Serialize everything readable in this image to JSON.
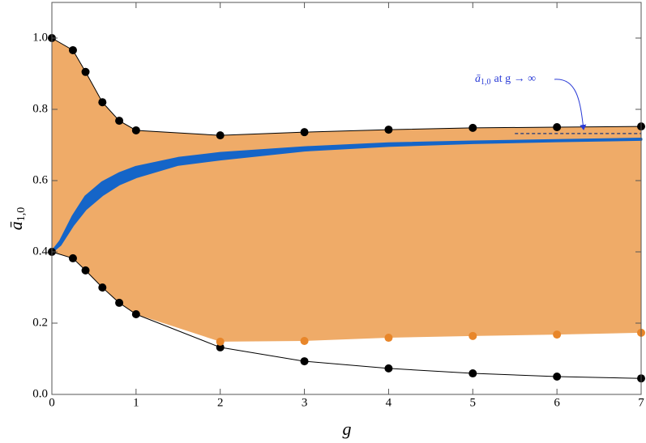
{
  "chart_data": {
    "type": "band-scatter",
    "x_label": "g",
    "y_label": {
      "symbol": "ā",
      "sub": "1,0"
    },
    "annotation": {
      "symbol": "ā",
      "sub": "1,0",
      "rest": "at g → ∞"
    },
    "xlim": [
      0,
      7
    ],
    "ylim": [
      0,
      1.1
    ],
    "xticks": [
      0,
      1,
      2,
      3,
      4,
      5,
      6,
      7
    ],
    "yticks": [
      {
        "value": 0,
        "label": "0.0"
      },
      0.2,
      0.4,
      0.6,
      0.8,
      {
        "value": 1,
        "label": "1.0"
      }
    ],
    "region": {
      "color": "#efab68",
      "x": [
        0,
        0.25,
        0.4,
        0.6,
        0.8,
        1,
        2,
        3,
        4,
        5,
        6,
        7
      ],
      "upper": [
        1.0,
        0.966,
        0.905,
        0.82,
        0.768,
        0.741,
        0.727,
        0.736,
        0.743,
        0.748,
        0.75,
        0.752
      ],
      "lower": [
        0.4,
        0.382,
        0.348,
        0.3,
        0.257,
        0.225,
        0.148,
        0.15,
        0.159,
        0.164,
        0.168,
        0.173
      ]
    },
    "curve": {
      "color": "#1565c8",
      "x": [
        0,
        0.1,
        0.25,
        0.4,
        0.6,
        0.8,
        1,
        1.5,
        2,
        3,
        4,
        5,
        6,
        7
      ],
      "upper": [
        0.4,
        0.43,
        0.5,
        0.555,
        0.595,
        0.62,
        0.638,
        0.663,
        0.677,
        0.693,
        0.704,
        0.709,
        0.713,
        0.717
      ],
      "lower": [
        0.4,
        0.42,
        0.475,
        0.52,
        0.56,
        0.59,
        0.61,
        0.645,
        0.66,
        0.685,
        0.698,
        0.706,
        0.711,
        0.715
      ]
    },
    "asymptote": {
      "value": 0.732,
      "x_start": 5.5,
      "color": "#3d4a7a"
    },
    "series": [
      {
        "color": "#000000",
        "line": true,
        "x": [
          0,
          0.25,
          0.4,
          0.6,
          0.8,
          1,
          2,
          3,
          4,
          5,
          6,
          7
        ],
        "values": [
          1.0,
          0.966,
          0.905,
          0.82,
          0.768,
          0.741,
          0.727,
          0.736,
          0.743,
          0.748,
          0.75,
          0.752
        ]
      },
      {
        "color": "#000000",
        "line": true,
        "x": [
          0,
          0.25,
          0.4,
          0.6,
          0.8,
          1,
          2,
          3,
          4,
          5,
          6,
          7
        ],
        "values": [
          0.4,
          0.382,
          0.348,
          0.3,
          0.257,
          0.225,
          0.132,
          0.093,
          0.073,
          0.059,
          0.05,
          0.045
        ]
      },
      {
        "color": "#e8862a",
        "line": false,
        "x": [
          2,
          3,
          4,
          5,
          6,
          7
        ],
        "values": [
          0.148,
          0.15,
          0.159,
          0.164,
          0.168,
          0.173
        ]
      }
    ]
  }
}
